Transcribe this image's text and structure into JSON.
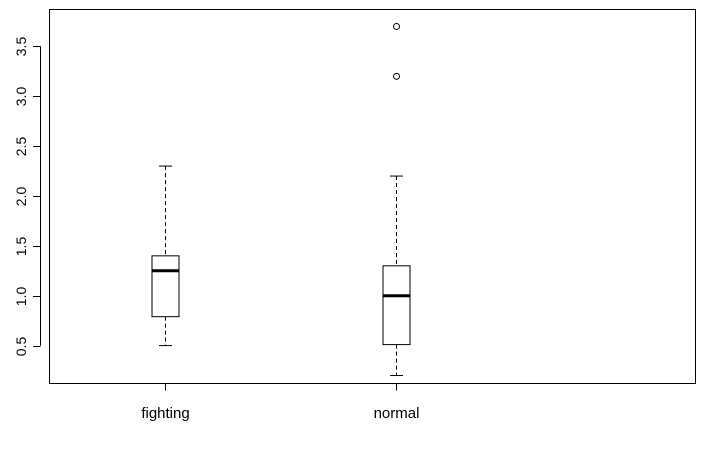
{
  "chart_data": {
    "type": "box",
    "title": "",
    "xlabel": "",
    "ylabel": "",
    "categories": [
      "fighting",
      "normal"
    ],
    "boxes": [
      {
        "category": "fighting",
        "whisker_low": 0.5,
        "q1": 0.79,
        "median": 1.25,
        "q3": 1.4,
        "whisker_high": 2.3,
        "outliers": []
      },
      {
        "category": "normal",
        "whisker_low": 0.2,
        "q1": 0.51,
        "median": 1.0,
        "q3": 1.3,
        "whisker_high": 2.2,
        "outliers": [
          3.2,
          3.7
        ]
      }
    ],
    "y_ticks": [
      "0.5",
      "1.0",
      "1.5",
      "2.0",
      "2.5",
      "3.0",
      "3.5"
    ],
    "y_tick_values": [
      0.5,
      1.0,
      1.5,
      2.0,
      2.5,
      3.0,
      3.5
    ],
    "ylim": [
      0.12,
      3.87
    ],
    "xlim": [
      0.5,
      3.3
    ],
    "grid": false,
    "legend": "none"
  }
}
